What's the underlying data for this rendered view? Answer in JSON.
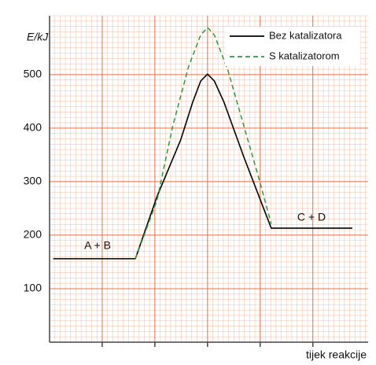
{
  "chart_data": {
    "type": "line",
    "y_label": "E/kJ",
    "x_label": "tijek reakcije",
    "annotations": [
      "A + B",
      "C + D"
    ],
    "xlim": [
      0,
      6.05
    ],
    "xticks": [
      1,
      2,
      3,
      4,
      5
    ],
    "ylim": [
      0,
      610
    ],
    "yticks": [
      100,
      200,
      300,
      400,
      500
    ],
    "grid": true,
    "legend": "top-right",
    "series": [
      {
        "name": "Bez katalizatora",
        "color": "#000000",
        "dash": false,
        "x": [
          0.07,
          1.63,
          2.04,
          2.49,
          2.72,
          2.87,
          3.0,
          3.13,
          3.31,
          3.69,
          4.21,
          5.75
        ],
        "values": [
          156,
          156,
          272,
          378,
          449,
          488,
          501,
          488,
          449,
          346,
          213,
          213
        ]
      },
      {
        "name": "S katalizatorom",
        "color": "#2e9a3c",
        "dash": true,
        "x": [
          1.63,
          1.82,
          2.04,
          2.34,
          2.64,
          2.87,
          3.0,
          3.13,
          3.39,
          3.69,
          3.99,
          4.21
        ],
        "values": [
          156,
          206,
          265,
          404,
          515,
          574,
          588,
          574,
          507,
          404,
          301,
          221
        ]
      }
    ]
  }
}
